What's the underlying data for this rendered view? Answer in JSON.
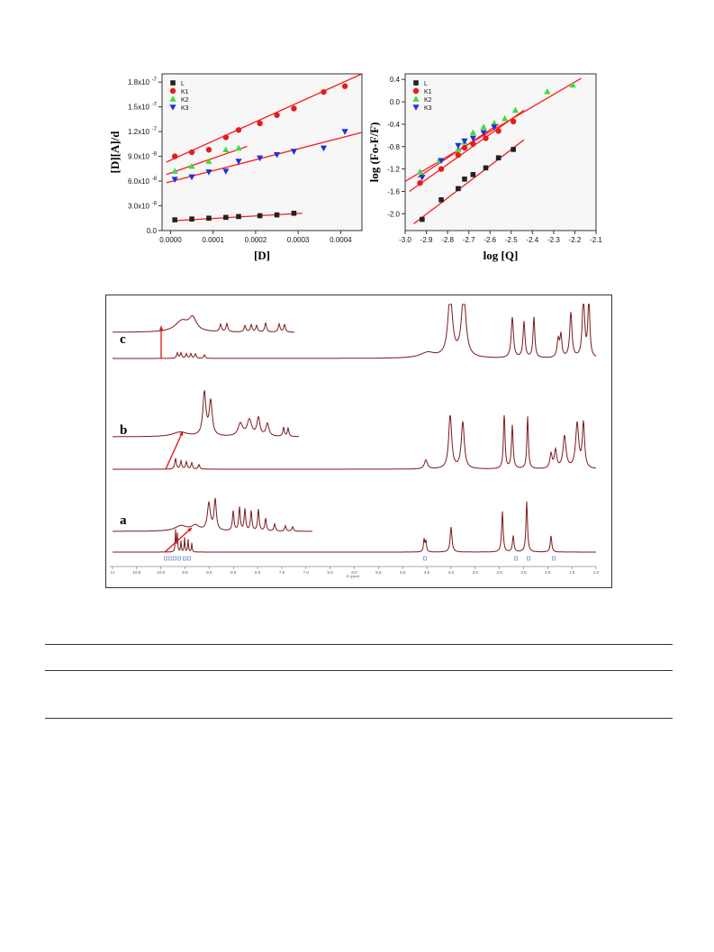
{
  "colors": {
    "fit": "#ff1a1a",
    "L": "#222222",
    "K1": "#e81b1b",
    "K2": "#3ddc3d",
    "K3": "#1f2fe0",
    "nmr": "#7a1a1a"
  },
  "chart_data": [
    {
      "type": "scatter",
      "xlabel": "[D]",
      "ylabel": "[D][A]/d",
      "xlim": [
        -2e-05,
        0.00045
      ],
      "ylim": [
        0,
        1.9e-07
      ],
      "x_ticks": [
        "0.0000",
        "0.0001",
        "0.0002",
        "0.0003",
        "0.0004"
      ],
      "y_ticks": [
        "0.0",
        "3.0x10",
        "6.0x10",
        "9.0x10",
        "1.2x10",
        "1.5x10",
        "1.8x10"
      ],
      "y_tick_exponents": [
        "",
        "-8",
        "-8",
        "-8",
        "-7",
        "-7",
        "-7"
      ],
      "legend_position": "top-left",
      "series": [
        {
          "name": "L",
          "marker": "square",
          "color": "#222222",
          "x": [
            1e-05,
            5e-05,
            9e-05,
            0.00013,
            0.00016,
            0.00021,
            0.00025,
            0.00029
          ],
          "y": [
            1.3e-08,
            1.4e-08,
            1.5e-08,
            1.6e-08,
            1.7e-08,
            1.8e-08,
            1.9e-08,
            2.1e-08
          ],
          "fit": [
            [
              1e-05,
              1.2e-08
            ],
            [
              0.00031,
              2.1e-08
            ]
          ]
        },
        {
          "name": "K1",
          "marker": "circle",
          "color": "#e81b1b",
          "x": [
            1e-05,
            5e-05,
            9e-05,
            0.00013,
            0.00016,
            0.00021,
            0.00025,
            0.00029,
            0.00036,
            0.00041
          ],
          "y": [
            9e-08,
            9.5e-08,
            9.8e-08,
            1.13e-07,
            1.22e-07,
            1.3e-07,
            1.4e-07,
            1.48e-07,
            1.68e-07,
            1.75e-07
          ],
          "fit": [
            [
              -1e-05,
              8.3e-08
            ],
            [
              0.00045,
              1.9e-07
            ]
          ]
        },
        {
          "name": "K2",
          "marker": "triangle-up",
          "color": "#3ddc3d",
          "x": [
            1e-05,
            5e-05,
            9e-05,
            0.00013,
            0.00016
          ],
          "y": [
            7.2e-08,
            7.8e-08,
            8.4e-08,
            9.8e-08,
            1e-07
          ],
          "fit": [
            [
              -1e-05,
              6.8e-08
            ],
            [
              0.00018,
              1.02e-07
            ]
          ]
        },
        {
          "name": "K3",
          "marker": "triangle-down",
          "color": "#1f2fe0",
          "x": [
            1e-05,
            5e-05,
            9e-05,
            0.00013,
            0.00016,
            0.00021,
            0.00025,
            0.00029,
            0.00036,
            0.00041
          ],
          "y": [
            6.2e-08,
            6.5e-08,
            7.1e-08,
            7.2e-08,
            8.4e-08,
            8.8e-08,
            9.2e-08,
            9.6e-08,
            1e-07,
            1.2e-07
          ],
          "fit": [
            [
              -1e-05,
              5.8e-08
            ],
            [
              0.00045,
              1.19e-07
            ]
          ]
        }
      ]
    },
    {
      "type": "scatter",
      "xlabel": "log [Q]",
      "ylabel": "log (Fo-F/F)",
      "xlim": [
        -3.0,
        -2.1
      ],
      "ylim": [
        -2.3,
        0.5
      ],
      "x_ticks": [
        "-3.0",
        "-2.9",
        "-2.8",
        "-2.7",
        "-2.6",
        "-2.5",
        "-2.4",
        "-2.3",
        "-2.2",
        "-2.1"
      ],
      "y_ticks": [
        "-2.0",
        "-1.6",
        "-1.2",
        "-0.8",
        "-0.4",
        "0.0",
        "0.4"
      ],
      "legend_position": "top-left",
      "series": [
        {
          "name": "L",
          "marker": "square",
          "color": "#222222",
          "x": [
            -2.92,
            -2.83,
            -2.75,
            -2.72,
            -2.68,
            -2.62,
            -2.56,
            -2.49
          ],
          "y": [
            -2.1,
            -1.75,
            -1.55,
            -1.38,
            -1.3,
            -1.18,
            -1.0,
            -0.85
          ],
          "fit": [
            [
              -2.96,
              -2.18
            ],
            [
              -2.44,
              -0.68
            ]
          ]
        },
        {
          "name": "K1",
          "marker": "circle",
          "color": "#e81b1b",
          "x": [
            -2.93,
            -2.83,
            -2.75,
            -2.72,
            -2.68,
            -2.62,
            -2.56,
            -2.49
          ],
          "y": [
            -1.45,
            -1.2,
            -0.95,
            -0.82,
            -0.75,
            -0.65,
            -0.52,
            -0.35
          ],
          "fit": [
            [
              -2.98,
              -1.6
            ],
            [
              -2.44,
              -0.15
            ]
          ]
        },
        {
          "name": "K2",
          "marker": "triangle-up",
          "color": "#3ddc3d",
          "x": [
            -2.93,
            -2.84,
            -2.75,
            -2.72,
            -2.68,
            -2.63,
            -2.58,
            -2.53,
            -2.48,
            -2.33,
            -2.21
          ],
          "y": [
            -1.25,
            -1.05,
            -0.85,
            -0.72,
            -0.55,
            -0.45,
            -0.38,
            -0.3,
            -0.15,
            0.18,
            0.3
          ],
          "fit": [
            [
              -3.0,
              -1.42
            ],
            [
              -2.17,
              0.42
            ]
          ]
        },
        {
          "name": "K3",
          "marker": "triangle-down",
          "color": "#1f2fe0",
          "x": [
            -2.92,
            -2.83,
            -2.75,
            -2.72,
            -2.68,
            -2.63,
            -2.58
          ],
          "y": [
            -1.35,
            -1.05,
            -0.78,
            -0.7,
            -0.65,
            -0.55,
            -0.45
          ],
          "fit": [
            [
              -2.94,
              -1.35
            ],
            [
              -2.56,
              -0.4
            ]
          ]
        }
      ]
    }
  ],
  "nmr": {
    "trace_labels": [
      "a",
      "b",
      "c"
    ],
    "axis_ticks": [
      "11",
      "10.5",
      "10.0",
      "9.5",
      "9.0",
      "8.5",
      "8.0",
      "7.5",
      "7.0",
      "6.5",
      "6.0",
      "5.5",
      "5.0",
      "4.5",
      "4.0",
      "3.5",
      "3.0",
      "2.5",
      "2.0",
      "1.5",
      "1.0"
    ],
    "axis_title": "f1 (ppm)"
  }
}
